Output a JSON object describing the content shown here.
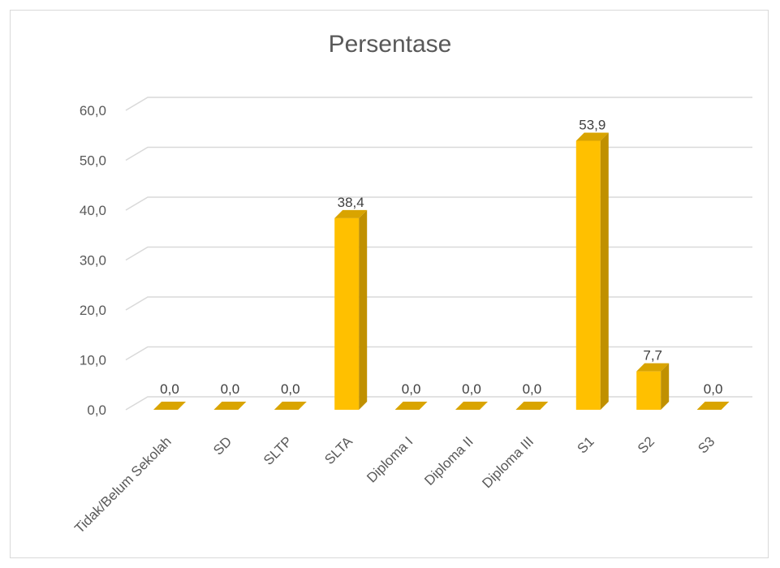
{
  "chart_data": {
    "type": "bar",
    "title": "Persentase",
    "categories": [
      "Tidak/Belum Sekolah",
      "SD",
      "SLTP",
      "SLTA",
      "Diploma I",
      "Diploma II",
      "Diploma III",
      "S1",
      "S2",
      "S3"
    ],
    "values": [
      0.0,
      0.0,
      0.0,
      38.4,
      0.0,
      0.0,
      0.0,
      53.9,
      7.7,
      0.0
    ],
    "value_labels": [
      "0,0",
      "0,0",
      "0,0",
      "38,4",
      "0,0",
      "0,0",
      "0,0",
      "53,9",
      "7,7",
      "0,0"
    ],
    "yticks": [
      "0,0",
      "10,0",
      "20,0",
      "30,0",
      "40,0",
      "50,0",
      "60,0"
    ],
    "ylim": [
      0,
      60
    ],
    "bar_color": "#FFC000",
    "bar_side_color": "#C09000",
    "bar_top_color": "#D9A400",
    "gridline_color": "#d9d9d9",
    "grid": true,
    "style": "3d-column",
    "legend": "none"
  }
}
